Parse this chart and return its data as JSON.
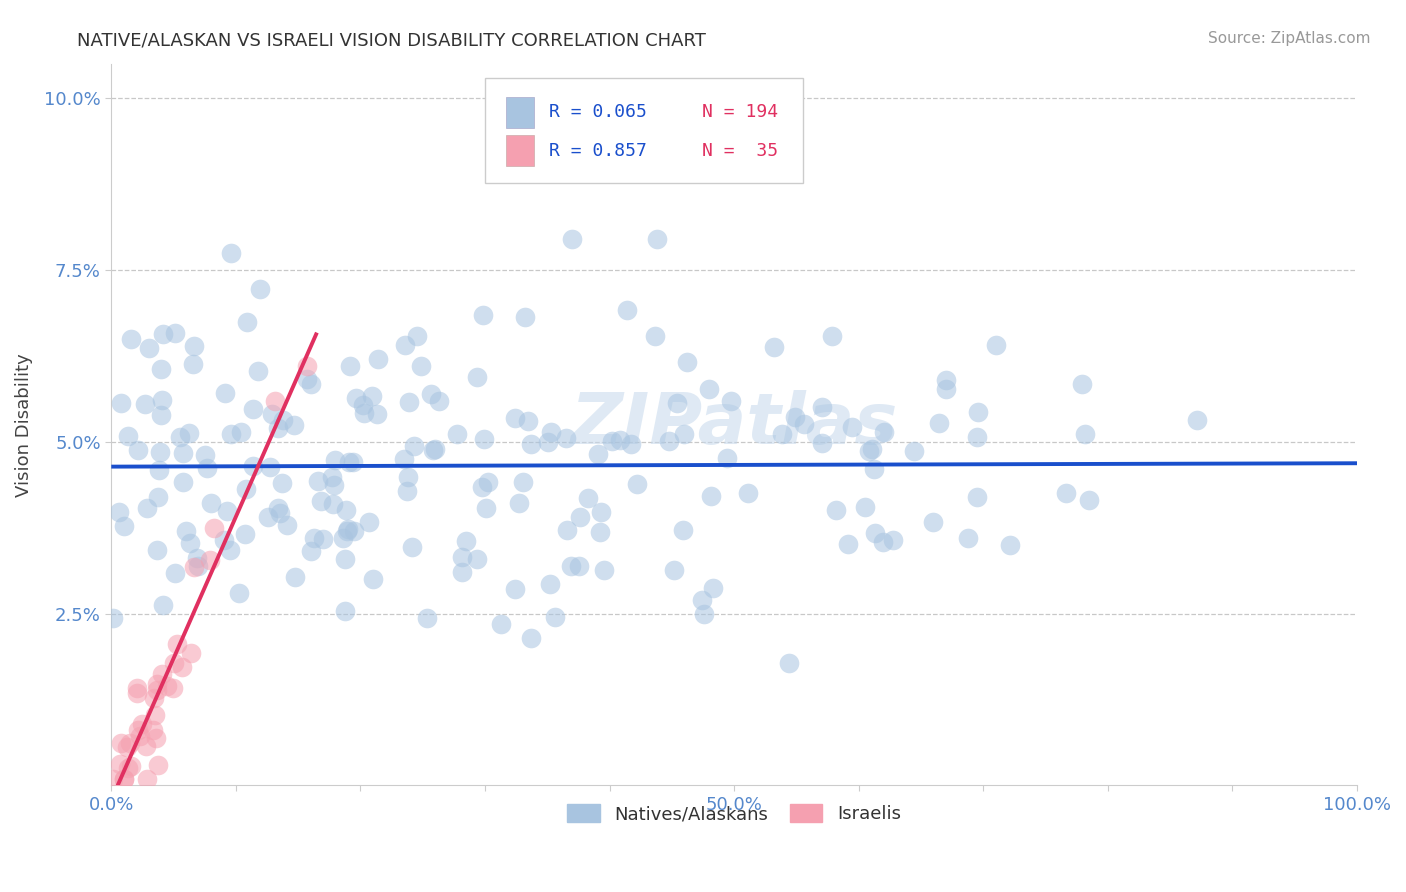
{
  "title": "NATIVE/ALASKAN VS ISRAELI VISION DISABILITY CORRELATION CHART",
  "source": "Source: ZipAtlas.com",
  "ylabel": "Vision Disability",
  "xlim": [
    0,
    1.0
  ],
  "ylim": [
    0,
    0.105
  ],
  "xtick_positions": [
    0.0,
    0.1,
    0.2,
    0.3,
    0.4,
    0.5,
    0.6,
    0.7,
    0.8,
    0.9,
    1.0
  ],
  "xtick_labels": [
    "0.0%",
    "",
    "",
    "",
    "",
    "50.0%",
    "",
    "",
    "",
    "",
    "100.0%"
  ],
  "ytick_positions": [
    0.025,
    0.05,
    0.075,
    0.1
  ],
  "ytick_labels": [
    "2.5%",
    "5.0%",
    "7.5%",
    "10.0%"
  ],
  "legend_r1": "R = 0.065",
  "legend_n1": "N = 194",
  "legend_r2": "R = 0.857",
  "legend_n2": "N =  35",
  "native_color": "#a8c4e0",
  "israeli_color": "#f5a0b0",
  "native_line_color": "#1a4fcc",
  "israeli_line_color": "#e03060",
  "background_color": "#ffffff",
  "watermark": "ZIPatlas",
  "native_R": 0.065,
  "native_N": 194,
  "israeli_R": 0.857,
  "israeli_N": 35,
  "tick_color": "#5588cc",
  "label_color": "#444444"
}
